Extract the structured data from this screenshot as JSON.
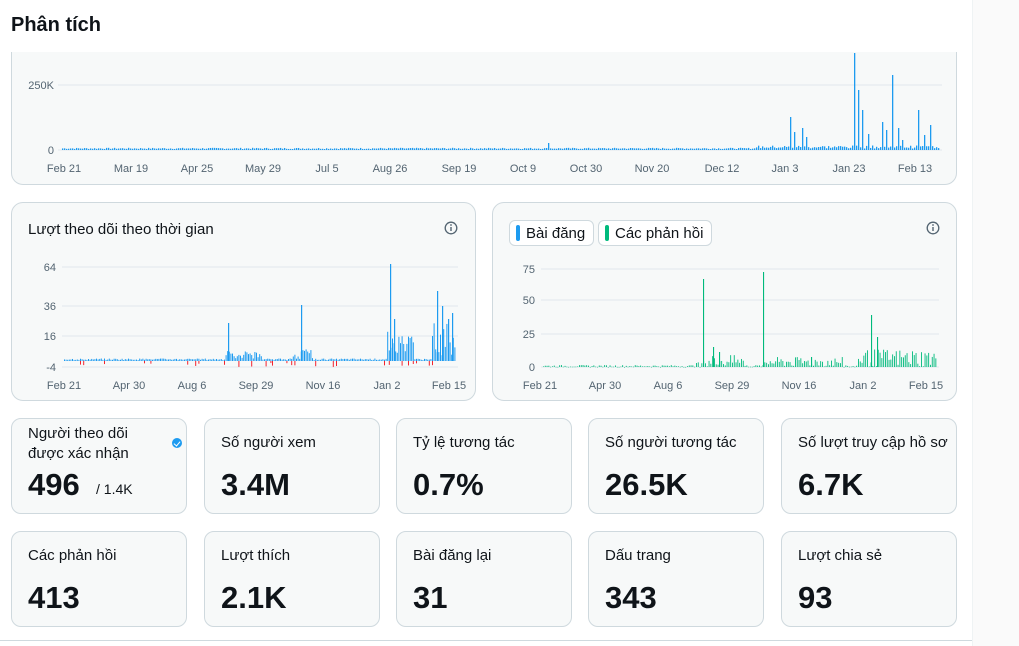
{
  "page": {
    "title": "Phân tích"
  },
  "colors": {
    "posts": "#1d9bf0",
    "replies": "#00ba7c",
    "negative": "#f4212e",
    "grid": "#e1e8ed",
    "axis_text": "#536471"
  },
  "top_chart": {
    "y_ticks": [
      "250K",
      "0"
    ],
    "x_labels": [
      "Feb 21",
      "Mar 19",
      "Apr 25",
      "May 29",
      "Jul 5",
      "Aug 26",
      "Sep 19",
      "Oct 9",
      "Oct 30",
      "Nov 20",
      "Dec 12",
      "Jan 3",
      "Jan 23",
      "Feb 13"
    ]
  },
  "followers_chart": {
    "title": "Lượt theo dõi theo thời gian",
    "info_icon": "info-icon",
    "y_ticks": [
      "64",
      "36",
      "16",
      "-4"
    ],
    "x_labels": [
      "Feb 21",
      "Apr 30",
      "Aug 6",
      "Sep 29",
      "Nov 16",
      "Jan 2",
      "Feb 15"
    ]
  },
  "posts_chart": {
    "legend": {
      "posts": "Bài đăng",
      "replies": "Các phản hồi"
    },
    "info_icon": "info-icon",
    "y_ticks": [
      "75",
      "50",
      "25",
      "0"
    ],
    "x_labels": [
      "Feb 21",
      "Apr 30",
      "Aug 6",
      "Sep 29",
      "Nov 16",
      "Jan 2",
      "Feb 15"
    ]
  },
  "stats": [
    {
      "label_line1": "Người theo dõi",
      "label_line2": "được xác nhận",
      "value": "496",
      "sub": "/ 1.4K",
      "verified_icon": "verified-badge-icon"
    },
    {
      "label": "Số người xem",
      "value": "3.4M"
    },
    {
      "label": "Tỷ lệ tương tác",
      "value": "0.7%"
    },
    {
      "label": "Số người tương tác",
      "value": "26.5K"
    },
    {
      "label": "Số lượt truy cập hồ sơ",
      "value": "6.7K"
    },
    {
      "label": "Các phản hồi",
      "value": "413"
    },
    {
      "label": "Lượt thích",
      "value": "2.1K"
    },
    {
      "label": "Bài đăng lại",
      "value": "31"
    },
    {
      "label": "Dấu trang",
      "value": "343"
    },
    {
      "label": "Lượt chia sẻ",
      "value": "93"
    }
  ]
}
